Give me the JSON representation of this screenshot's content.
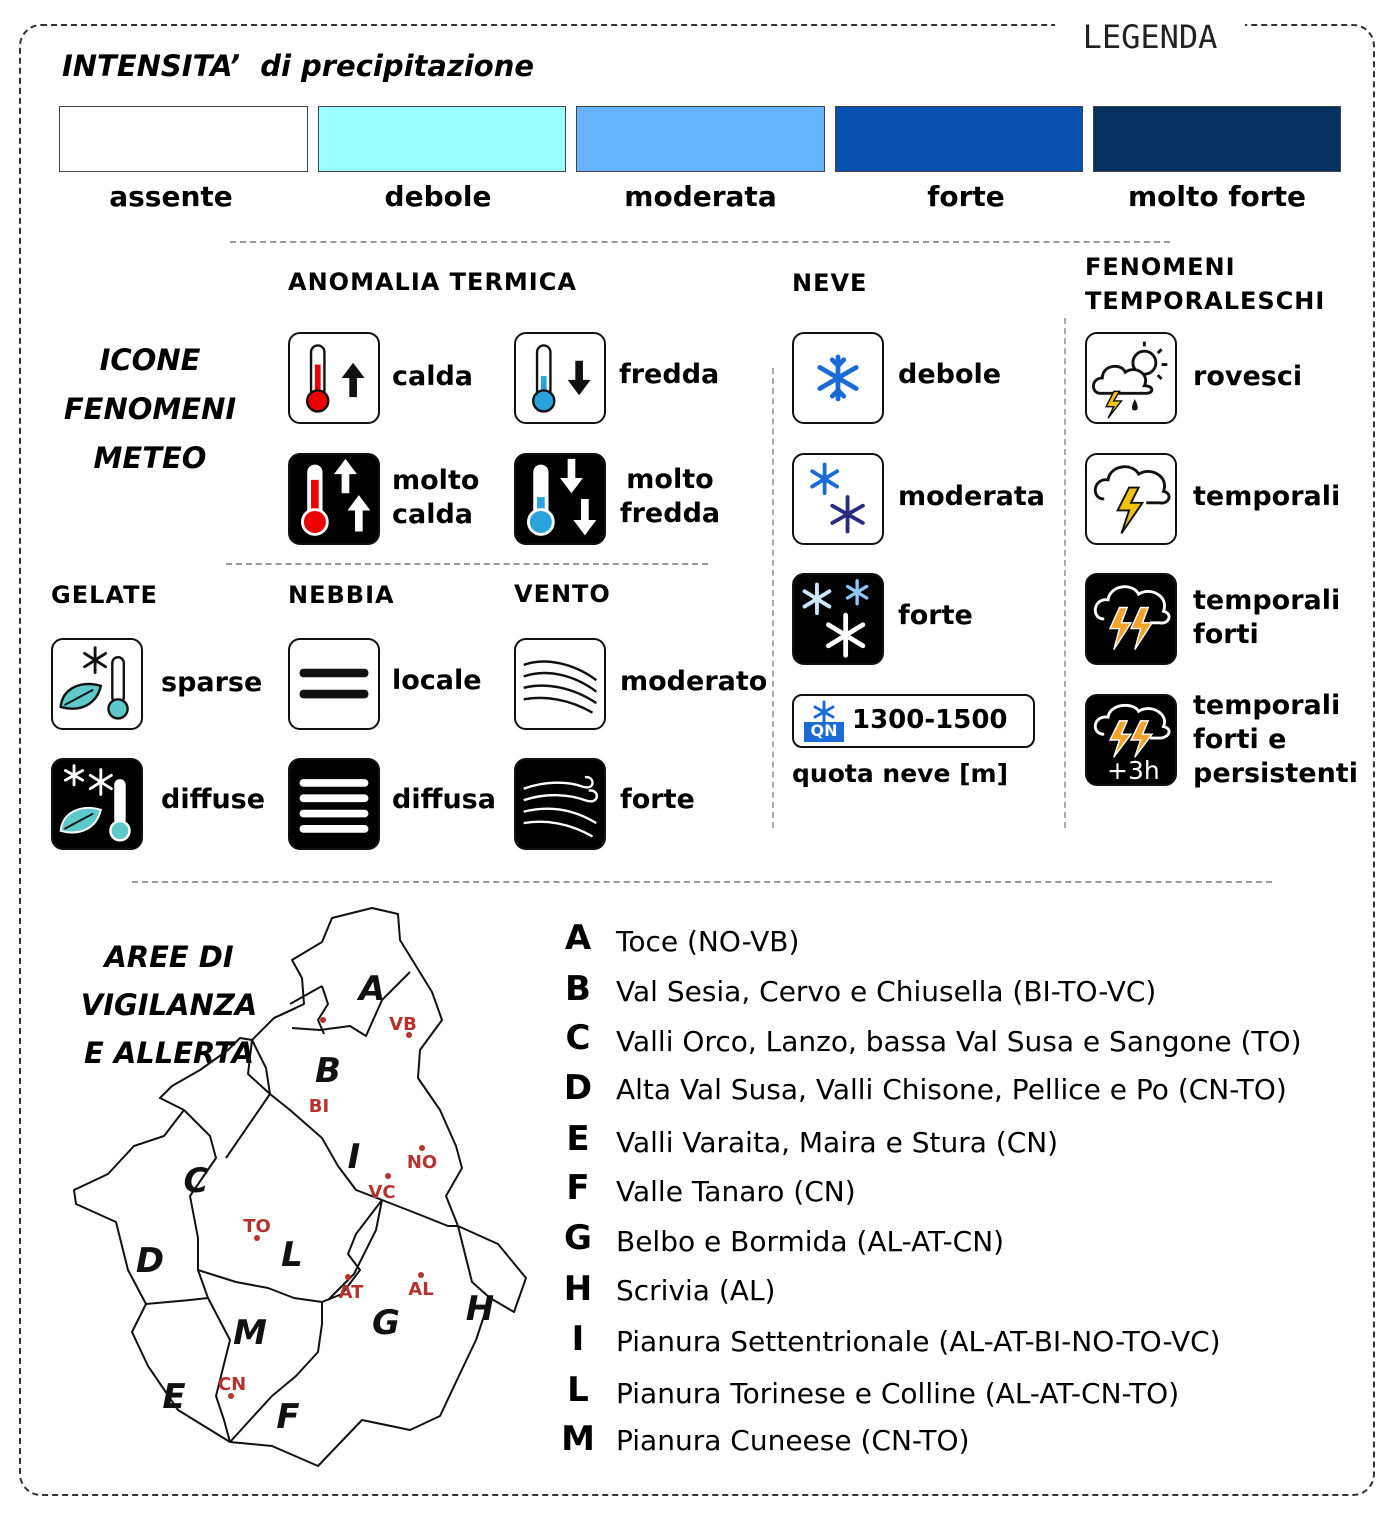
{
  "header": {
    "legend_title": "LEGENDA",
    "intensity_title": "INTENSITA’  di precipitazione"
  },
  "intensity": [
    {
      "label": "assente",
      "color": "#ffffff"
    },
    {
      "label": "debole",
      "color": "#99ffff"
    },
    {
      "label": "moderata",
      "color": "#66b3ff"
    },
    {
      "label": "forte",
      "color": "#0851b0"
    },
    {
      "label": "molto forte",
      "color": "#03305f"
    }
  ],
  "icons_section": {
    "title_lines": [
      "ICONE",
      "FENOMENI",
      "METEO"
    ]
  },
  "thermal": {
    "title": "ANOMALIA TERMICA",
    "calda": "calda",
    "fredda": "fredda",
    "molto_calda": [
      "molto",
      "calda"
    ],
    "molto_fredda": [
      "molto",
      "fredda"
    ],
    "icons": [
      "thermometer-hot-icon",
      "thermometer-cold-icon",
      "thermometer-very-hot-icon",
      "thermometer-very-cold-icon"
    ]
  },
  "snow": {
    "title": "NEVE",
    "debole": "debole",
    "moderata": "moderata",
    "forte": "forte",
    "qn_badge": "QN",
    "quota_value": "1300-1500",
    "quota_label": "quota neve [m]"
  },
  "storms": {
    "title_lines": [
      "FENOMENI",
      "TEMPORALESCHI"
    ],
    "rovesci": "rovesci",
    "temporali": "temporali",
    "temporali_forti": [
      "temporali",
      "forti"
    ],
    "persistenti": [
      "temporali",
      "forti e",
      "persistenti"
    ],
    "persist_badge": "+3h"
  },
  "frost": {
    "title": "GELATE",
    "sparse": "sparse",
    "diffuse": "diffuse"
  },
  "fog": {
    "title": "NEBBIA",
    "locale": "locale",
    "diffusa": "diffusa"
  },
  "wind": {
    "title": "VENTO",
    "moderato": "moderato",
    "forte": "forte"
  },
  "areas": {
    "title_lines": [
      "AREE DI",
      "VIGILANZA",
      "E ALLERTA"
    ],
    "list": [
      {
        "letter": "A",
        "name": "Toce (NO-VB)"
      },
      {
        "letter": "B",
        "name": "Val Sesia, Cervo e Chiusella (BI-TO-VC)"
      },
      {
        "letter": "C",
        "name": "Valli Orco, Lanzo, bassa Val Susa e Sangone (TO)"
      },
      {
        "letter": "D",
        "name": "Alta Val Susa, Valli Chisone, Pellice e Po (CN-TO)"
      },
      {
        "letter": "E",
        "name": "Valli Varaita, Maira e Stura (CN)"
      },
      {
        "letter": "F",
        "name": "Valle Tanaro (CN)"
      },
      {
        "letter": "G",
        "name": "Belbo e Bormida (AL-AT-CN)"
      },
      {
        "letter": "H",
        "name": "Scrivia (AL)"
      },
      {
        "letter": "I",
        "name": "Pianura Settentrionale (AL-AT-BI-NO-TO-VC)"
      },
      {
        "letter": "L",
        "name": "Pianura Torinese e Colline (AL-AT-CN-TO)"
      },
      {
        "letter": "M",
        "name": "Pianura Cuneese (CN-TO)"
      }
    ],
    "map_letters": [
      "A",
      "B",
      "C",
      "D",
      "E",
      "F",
      "G",
      "H",
      "I",
      "L",
      "M"
    ],
    "cities": [
      "VB",
      "BI",
      "NO",
      "VC",
      "TO",
      "AT",
      "AL",
      "CN"
    ]
  }
}
